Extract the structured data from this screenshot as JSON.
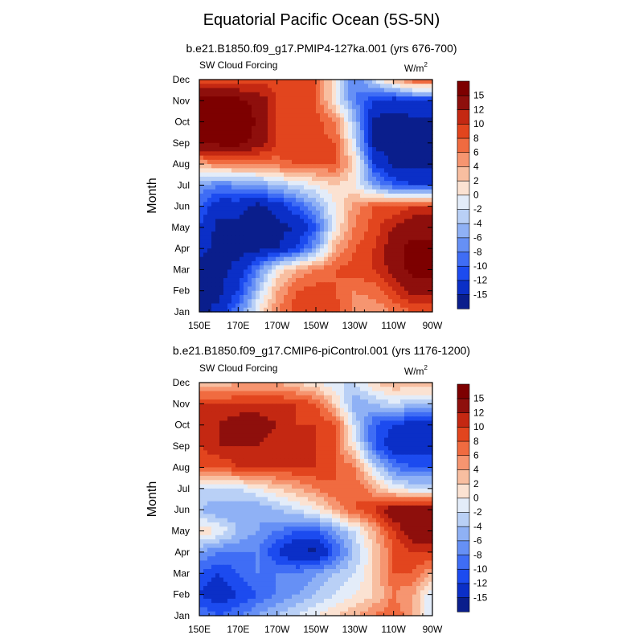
{
  "figure": {
    "title": "Equatorial Pacific Ocean (5S-5N)"
  },
  "colorbar_colors": [
    "#0a1e8c",
    "#0b2fc7",
    "#1c4bef",
    "#3f6df5",
    "#6690f5",
    "#8fb1f5",
    "#b9d0f6",
    "#e3ecf9",
    "#fbe2d2",
    "#f8bea0",
    "#f69570",
    "#f06b40",
    "#e2451e",
    "#c42812",
    "#8e0f0c",
    "#7d0000"
  ],
  "chart_data": [
    {
      "type": "heatmap",
      "title": "b.e21.B1850.f09_g17.PMIP4-127ka.001 (yrs 676-700)",
      "left_label": "SW Cloud Forcing",
      "units_main": "W/m",
      "units_sup": "2",
      "ylabel": "Month",
      "xlabel": "",
      "x_ticks": [
        "150E",
        "170E",
        "170W",
        "150W",
        "130W",
        "110W",
        "90W"
      ],
      "y_ticks": [
        "Jan",
        "Feb",
        "Mar",
        "Apr",
        "May",
        "Jun",
        "Jul",
        "Aug",
        "Sep",
        "Oct",
        "Nov",
        "Dec"
      ],
      "x_range": [
        150,
        270
      ],
      "y_range": [
        1,
        12
      ],
      "colorbar_labels": [
        "-15",
        "-12",
        "-10",
        "-8",
        "-6",
        "-4",
        "-2",
        "0",
        "2",
        "4",
        "6",
        "8",
        "10",
        "12",
        "15"
      ],
      "z_units": "W/m2",
      "x_centers": [
        150,
        160,
        170,
        180,
        190,
        200,
        210,
        220,
        230,
        240,
        250,
        260,
        270
      ],
      "values": [
        [
          -16,
          -14,
          -8,
          0,
          6,
          9,
          10,
          9,
          5,
          4,
          6,
          8,
          8
        ],
        [
          -16,
          -16,
          -12,
          -4,
          4,
          8,
          9,
          8,
          6,
          7,
          10,
          13,
          13
        ],
        [
          -16,
          -16,
          -14,
          -8,
          0,
          4,
          6,
          8,
          9,
          10,
          13,
          16,
          16
        ],
        [
          -14,
          -16,
          -16,
          -16,
          -15,
          -12,
          -6,
          4,
          8,
          10,
          14,
          16,
          16
        ],
        [
          -12,
          -16,
          -16,
          -16,
          -16,
          -15,
          -10,
          0,
          6,
          9,
          12,
          14,
          14
        ],
        [
          -10,
          -14,
          -14,
          -16,
          -14,
          -10,
          -6,
          0,
          5,
          8,
          8,
          10,
          10
        ],
        [
          -6,
          -8,
          -7,
          -6,
          -4,
          -2,
          0,
          2,
          0,
          -6,
          -10,
          -12,
          -12
        ],
        [
          4,
          6,
          6,
          6,
          7,
          8,
          8,
          8,
          2,
          -12,
          -16,
          -16,
          -16
        ],
        [
          16,
          16,
          16,
          14,
          10,
          10,
          9,
          8,
          -2,
          -16,
          -16,
          -16,
          -16
        ],
        [
          16,
          16,
          16,
          15,
          10,
          9,
          9,
          6,
          -4,
          -16,
          -16,
          -16,
          -16
        ],
        [
          16,
          16,
          16,
          14,
          10,
          9,
          8,
          0,
          -8,
          -12,
          -14,
          -12,
          -12
        ],
        [
          8,
          8,
          8,
          9,
          9,
          9,
          8,
          0,
          -8,
          -2,
          4,
          8,
          8
        ]
      ]
    },
    {
      "type": "heatmap",
      "title": "b.e21.B1850.f09_g17.CMIP6-piControl.001 (yrs 1176-1200)",
      "left_label": "SW Cloud Forcing",
      "units_main": "W/m",
      "units_sup": "2",
      "ylabel": "Month",
      "xlabel": "",
      "x_ticks": [
        "150E",
        "170E",
        "170W",
        "150W",
        "130W",
        "110W",
        "90W"
      ],
      "y_ticks": [
        "Jan",
        "Feb",
        "Mar",
        "Apr",
        "May",
        "Jun",
        "Jul",
        "Aug",
        "Sep",
        "Oct",
        "Nov",
        "Dec"
      ],
      "x_range": [
        150,
        270
      ],
      "y_range": [
        1,
        12
      ],
      "colorbar_labels": [
        "-15",
        "-12",
        "-10",
        "-8",
        "-6",
        "-4",
        "-2",
        "0",
        "2",
        "4",
        "6",
        "8",
        "10",
        "12",
        "15"
      ],
      "z_units": "W/m2",
      "x_centers": [
        150,
        160,
        170,
        180,
        190,
        200,
        210,
        220,
        230,
        240,
        250,
        260,
        270
      ],
      "values": [
        [
          -8,
          -10,
          -8,
          -6,
          -4,
          -2,
          0,
          2,
          4,
          6,
          8,
          4,
          -2
        ],
        [
          -12,
          -14,
          -12,
          -10,
          -8,
          -6,
          -4,
          -2,
          0,
          2,
          6,
          4,
          -2
        ],
        [
          -10,
          -12,
          -10,
          -8,
          -8,
          -8,
          -6,
          -4,
          -2,
          2,
          8,
          8,
          4
        ],
        [
          -6,
          -8,
          -8,
          -8,
          -12,
          -15,
          -16,
          -10,
          -4,
          2,
          8,
          10,
          10
        ],
        [
          2,
          0,
          -4,
          -6,
          -8,
          -10,
          -10,
          -6,
          -2,
          4,
          10,
          14,
          14
        ],
        [
          -4,
          -6,
          -6,
          -6,
          -4,
          -2,
          0,
          4,
          8,
          10,
          14,
          14,
          14
        ],
        [
          -2,
          -2,
          -2,
          0,
          2,
          4,
          6,
          8,
          8,
          4,
          0,
          -2,
          -2
        ],
        [
          8,
          8,
          10,
          10,
          10,
          10,
          10,
          8,
          6,
          -2,
          -8,
          -10,
          -10
        ],
        [
          10,
          12,
          12,
          12,
          10,
          10,
          10,
          8,
          0,
          -10,
          -14,
          -14,
          -14
        ],
        [
          10,
          12,
          14,
          14,
          12,
          10,
          10,
          8,
          -2,
          -10,
          -12,
          -14,
          -14
        ],
        [
          10,
          10,
          10,
          10,
          10,
          10,
          8,
          2,
          -6,
          -4,
          -2,
          -4,
          -4
        ],
        [
          2,
          2,
          4,
          4,
          4,
          2,
          0,
          -2,
          -2,
          2,
          4,
          4,
          4
        ]
      ]
    }
  ]
}
